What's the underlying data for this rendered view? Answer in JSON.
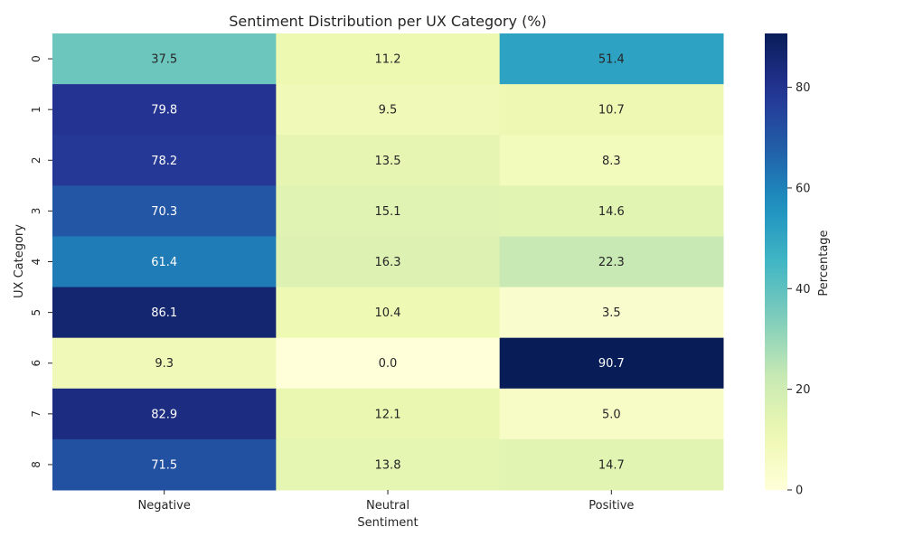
{
  "chart_data": {
    "type": "heatmap",
    "title": "Sentiment Distribution per UX Category (%)",
    "xlabel": "Sentiment",
    "ylabel": "UX Category",
    "x_categories": [
      "Negative",
      "Neutral",
      "Positive"
    ],
    "y_categories": [
      "0",
      "1",
      "2",
      "3",
      "4",
      "5",
      "6",
      "7",
      "8"
    ],
    "values": [
      [
        37.5,
        11.2,
        51.4
      ],
      [
        79.8,
        9.5,
        10.7
      ],
      [
        78.2,
        13.5,
        8.3
      ],
      [
        70.3,
        15.1,
        14.6
      ],
      [
        61.4,
        16.3,
        22.3
      ],
      [
        86.1,
        10.4,
        3.5
      ],
      [
        9.3,
        0.0,
        90.7
      ],
      [
        82.9,
        12.1,
        5.0
      ],
      [
        71.5,
        13.8,
        14.7
      ]
    ],
    "colormap": "YlGnBu",
    "colorbar": {
      "label": "Percentage",
      "range": [
        0,
        90.7
      ],
      "ticks": [
        0,
        20,
        40,
        60,
        80
      ]
    },
    "annotations": true,
    "value_format": "0.0"
  }
}
